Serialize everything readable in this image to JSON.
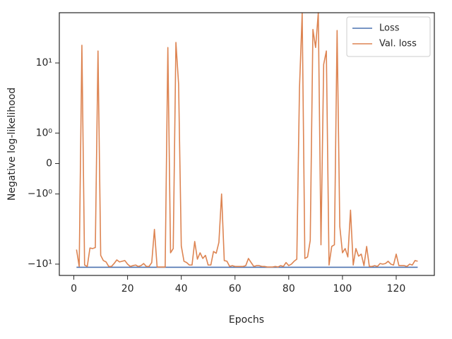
{
  "chart_data": {
    "type": "line",
    "xlabel": "Epochs",
    "ylabel": "Negative log-likelihood",
    "yscale": "symlog",
    "linthresh": 1,
    "xlim": [
      -5.4,
      134.2
    ],
    "xticks": [
      0,
      20,
      40,
      60,
      80,
      100,
      120
    ],
    "ylim": [
      -14.5,
      52
    ],
    "yticks": [
      {
        "value": -10,
        "label": "−10¹"
      },
      {
        "value": -1,
        "label": "−10⁰"
      },
      0,
      {
        "value": 1,
        "label": "10⁰"
      },
      {
        "value": 10,
        "label": "10¹"
      }
    ],
    "legend": "upper right",
    "x": [
      1,
      2,
      3,
      4,
      5,
      6,
      7,
      8,
      9,
      10,
      11,
      12,
      13,
      14,
      15,
      16,
      17,
      18,
      19,
      20,
      21,
      22,
      23,
      24,
      25,
      26,
      27,
      28,
      29,
      30,
      31,
      32,
      33,
      34,
      35,
      36,
      37,
      38,
      39,
      40,
      41,
      42,
      43,
      44,
      45,
      46,
      47,
      48,
      49,
      50,
      51,
      52,
      53,
      54,
      55,
      56,
      57,
      58,
      59,
      60,
      61,
      62,
      63,
      64,
      65,
      66,
      67,
      68,
      69,
      70,
      71,
      72,
      73,
      74,
      75,
      76,
      77,
      78,
      79,
      80,
      81,
      82,
      83,
      84,
      85,
      86,
      87,
      88,
      89,
      90,
      91,
      92,
      93,
      94,
      95,
      96,
      97,
      98,
      99,
      100,
      101,
      102,
      103,
      104,
      105,
      106,
      107,
      108,
      109,
      110,
      111,
      112,
      113,
      114,
      115,
      116,
      117,
      118,
      119,
      120,
      121,
      122,
      123,
      124,
      125,
      126,
      127,
      128
    ],
    "series": [
      {
        "name": "Loss",
        "color": "#4c72b0",
        "values": [
          -11.1,
          -11.1,
          -11.1,
          -11.1,
          -11.1,
          -11.1,
          -11.1,
          -11.1,
          -11.1,
          -11.1,
          -11.1,
          -11.1,
          -11.1,
          -11.1,
          -11.1,
          -11.1,
          -11.1,
          -11.1,
          -11.1,
          -11.1,
          -11.1,
          -11.1,
          -11.1,
          -11.1,
          -11.1,
          -11.1,
          -11.1,
          -11.1,
          -11.1,
          -11.1,
          -11.1,
          -11.1,
          -11.1,
          -11.1,
          -11.1,
          -11.1,
          -11.1,
          -11.1,
          -11.1,
          -11.1,
          -11.1,
          -11.1,
          -11.1,
          -11.1,
          -11.1,
          -11.1,
          -11.1,
          -11.1,
          -11.1,
          -11.1,
          -11.1,
          -11.1,
          -11.1,
          -11.1,
          -11.1,
          -11.1,
          -11.1,
          -11.1,
          -11.1,
          -11.1,
          -11.1,
          -11.1,
          -11.1,
          -11.1,
          -11.1,
          -11.1,
          -11.1,
          -11.1,
          -11.1,
          -11.1,
          -11.1,
          -11.1,
          -11.1,
          -11.1,
          -11.1,
          -11.1,
          -11.1,
          -11.1,
          -11.1,
          -11.1,
          -11.1,
          -11.1,
          -11.1,
          -11.1,
          -11.1,
          -11.1,
          -11.1,
          -11.1,
          -11.1,
          -11.1,
          -11.1,
          -11.1,
          -11.1,
          -11.1,
          -11.1,
          -11.1,
          -11.1,
          -11.1,
          -11.1,
          -11.1,
          -11.1,
          -11.1,
          -11.1,
          -11.1,
          -11.1,
          -11.1,
          -11.1,
          -11.1,
          -11.1,
          -11.1,
          -11.1,
          -11.1,
          -11.1,
          -11.1,
          -11.1,
          -11.1,
          -11.1,
          -11.1,
          -11.1,
          -11.1,
          -11.1,
          -11.1,
          -11.1,
          -11.1,
          -11.1,
          -11.1,
          -11.1,
          -11.1
        ]
      },
      {
        "name": "Val. loss",
        "color": "#dd8452",
        "values": [
          -6.2,
          -10.8,
          17.9,
          -10.3,
          -10.8,
          -5.9,
          -6.0,
          -5.8,
          14.8,
          -7.5,
          -8.9,
          -9.3,
          -10.8,
          -10.8,
          -9.8,
          -8.7,
          -9.3,
          -9.1,
          -8.9,
          -10.0,
          -10.8,
          -10.5,
          -10.3,
          -10.8,
          -10.5,
          -9.8,
          -10.8,
          -10.8,
          -9.5,
          -3.2,
          -11,
          -11,
          -11,
          -11,
          16.6,
          -6.9,
          -6.0,
          19.6,
          5.0,
          -5.5,
          -9.1,
          -9.5,
          -10.3,
          -10.3,
          -4.75,
          -8.5,
          -6.9,
          -8.3,
          -7.5,
          -10.3,
          -10.3,
          -6.6,
          -7.0,
          -4.9,
          -1.0,
          -8.9,
          -9.1,
          -10.8,
          -10.5,
          -10.8,
          -10.8,
          -10.8,
          -10.8,
          -10.5,
          -8.3,
          -9.5,
          -10.8,
          -10.5,
          -10.5,
          -10.8,
          -10.8,
          -11,
          -11,
          -11,
          -10.8,
          -11,
          -10.5,
          -10.8,
          -9.5,
          -10.5,
          -10.0,
          -9.1,
          -8.5,
          4.4,
          51,
          -8.3,
          -7.9,
          -4.6,
          30,
          16.6,
          52,
          -5.3,
          9.5,
          14.8,
          -10.3,
          -5.6,
          -5.3,
          29,
          -2.9,
          -6.9,
          -6.0,
          -7.9,
          -1.7,
          -10.3,
          -6.0,
          -7.7,
          -7.2,
          -10.5,
          -5.6,
          -10.8,
          -10.8,
          -10.5,
          -10.8,
          -9.8,
          -10.0,
          -9.8,
          -9.1,
          -10.0,
          -10.3,
          -7.2,
          -10.5,
          -10.5,
          -10.5,
          -10.8,
          -10.0,
          -10.3,
          -8.9,
          -9.1
        ]
      }
    ]
  }
}
